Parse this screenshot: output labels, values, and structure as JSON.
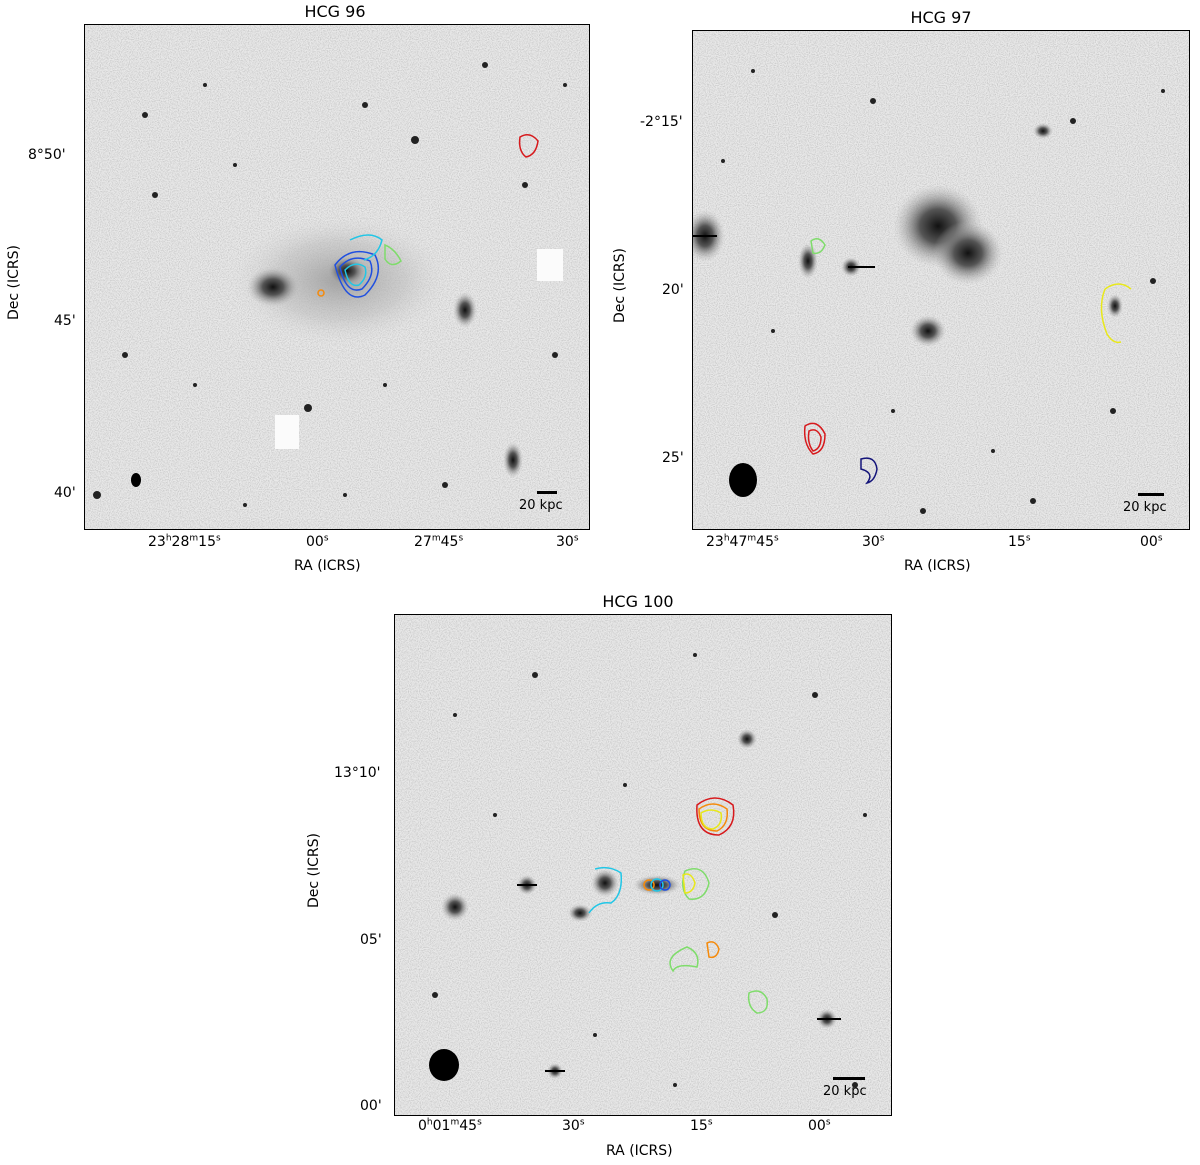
{
  "panels": [
    {
      "id": "hcg96",
      "title": "HCG 96",
      "xlabel": "RA (ICRS)",
      "ylabel": "Dec (ICRS)",
      "scalebar": "20 kpc",
      "xticks": [
        {
          "h": "23",
          "hs": "h",
          "m": "28",
          "ms": "m",
          "s": "15",
          "ss": "s"
        },
        {
          "s": "00",
          "ss": "s"
        },
        {
          "m": "27",
          "ms": "m",
          "s": "45",
          "ss": "s"
        },
        {
          "s": "30",
          "ss": "s"
        }
      ],
      "yticks": [
        "8°50'",
        "45'",
        "40'"
      ]
    },
    {
      "id": "hcg97",
      "title": "HCG 97",
      "xlabel": "RA (ICRS)",
      "ylabel": "Dec (ICRS)",
      "scalebar": "20 kpc",
      "xticks": [
        {
          "h": "23",
          "hs": "h",
          "m": "47",
          "ms": "m",
          "s": "45",
          "ss": "s"
        },
        {
          "s": "30",
          "ss": "s"
        },
        {
          "s": "15",
          "ss": "s"
        },
        {
          "s": "00",
          "ss": "s"
        }
      ],
      "yticks": [
        "-2°15'",
        "20'",
        "25'"
      ]
    },
    {
      "id": "hcg100",
      "title": "HCG 100",
      "xlabel": "RA (ICRS)",
      "ylabel": "Dec (ICRS)",
      "scalebar": "20 kpc",
      "xticks": [
        {
          "h": "0",
          "hs": "h",
          "m": "01",
          "ms": "m",
          "s": "45",
          "ss": "s"
        },
        {
          "s": "30",
          "ss": "s"
        },
        {
          "s": "15",
          "ss": "s"
        },
        {
          "s": "00",
          "ss": "s"
        }
      ],
      "yticks": [
        "13°10'",
        "05'",
        "00'"
      ]
    }
  ],
  "colors": {
    "background": "#e9e9e9",
    "contour_red": "#d7191c",
    "contour_orange": "#f58a0b",
    "contour_yellow": "#e8e81a",
    "contour_green": "#7fdc6b",
    "contour_cyan": "#21c6e6",
    "contour_blue": "#1f4fe0",
    "contour_navy": "#14147a"
  }
}
